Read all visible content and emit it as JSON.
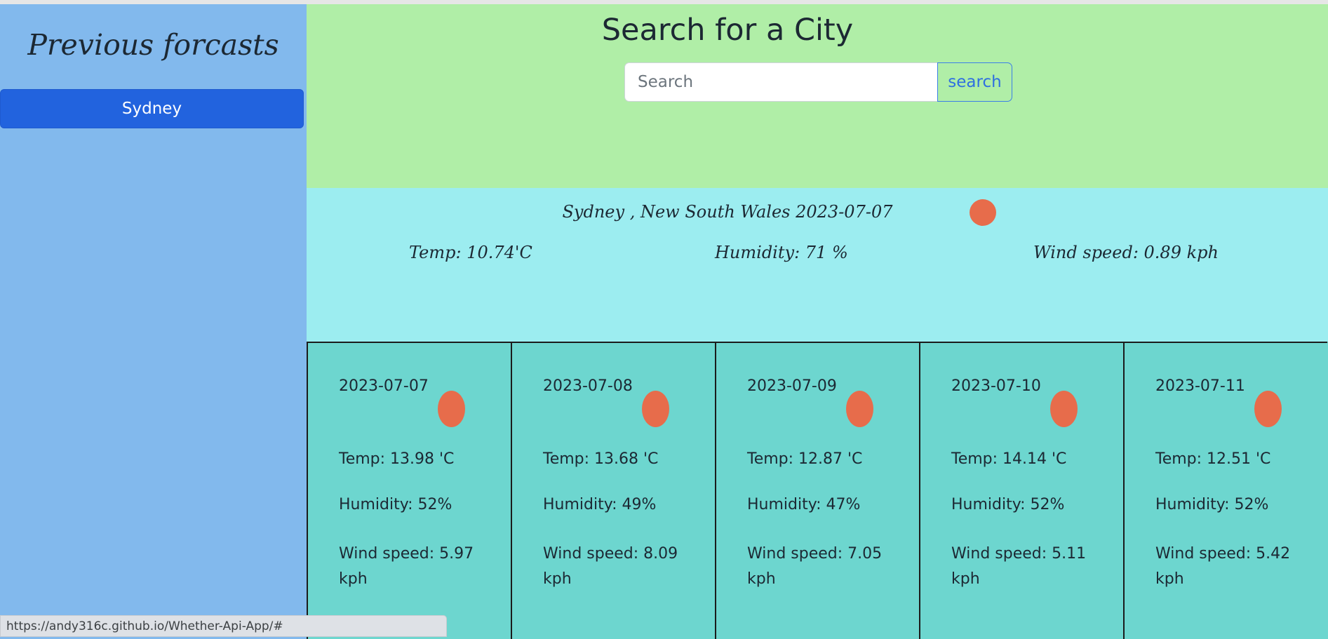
{
  "colors": {
    "sidebar_bg": "#82b9ed",
    "search_bg": "#b0eea7",
    "current_bg": "#9cedf0",
    "forecast_bg": "#6dd6cf",
    "accent_button": "#2263de",
    "weather_icon": "#e76c4b"
  },
  "sidebar": {
    "title": "Previous forcasts",
    "history": [
      "Sydney"
    ]
  },
  "search": {
    "title": "Search for a City",
    "placeholder": "Search",
    "button_label": "search"
  },
  "current": {
    "heading": "Sydney , New South Wales 2023-07-07",
    "icon": "weather-icon",
    "temp": "Temp: 10.74'C",
    "humidity": "Humidity: 71 %",
    "wind": "Wind speed: 0.89 kph"
  },
  "forecast": [
    {
      "date": "2023-07-07",
      "temp": "Temp: 13.98 'C",
      "humidity": "Humidity: 52%",
      "wind": "Wind speed: 5.97 kph"
    },
    {
      "date": "2023-07-08",
      "temp": "Temp: 13.68 'C",
      "humidity": "Humidity: 49%",
      "wind": "Wind speed: 8.09 kph"
    },
    {
      "date": "2023-07-09",
      "temp": "Temp: 12.87 'C",
      "humidity": "Humidity: 47%",
      "wind": "Wind speed: 7.05 kph"
    },
    {
      "date": "2023-07-10",
      "temp": "Temp: 14.14 'C",
      "humidity": "Humidity: 52%",
      "wind": "Wind speed: 5.11 kph"
    },
    {
      "date": "2023-07-11",
      "temp": "Temp: 12.51 'C",
      "humidity": "Humidity: 52%",
      "wind": "Wind speed: 5.42 kph"
    }
  ],
  "status_bar": {
    "url": "https://andy316c.github.io/Whether-Api-App/#"
  }
}
